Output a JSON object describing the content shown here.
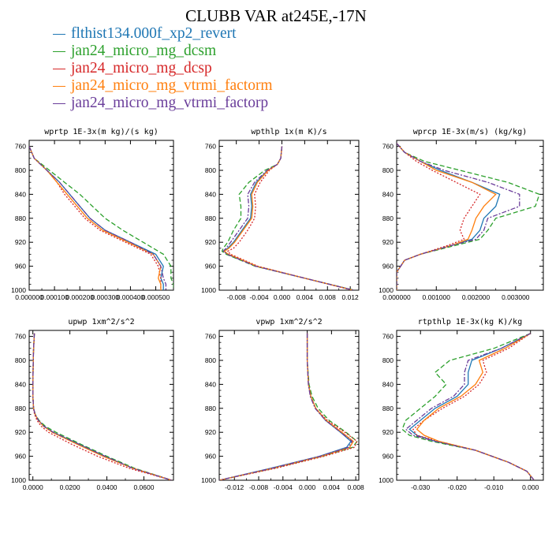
{
  "title": "CLUBB VAR at245E,-17N",
  "legend": [
    {
      "label": "flthist134.000f_xp2_revert",
      "color": "#1f77b4",
      "dash": "none"
    },
    {
      "label": "jan24_micro_mg_dcsm",
      "color": "#2ca02c",
      "dash": "6,3"
    },
    {
      "label": "jan24_micro_mg_dcsp",
      "color": "#d62728",
      "dash": "2,2"
    },
    {
      "label": "jan24_micro_mg_vtrmi_factorm",
      "color": "#ff7f0e",
      "dash": "none"
    },
    {
      "label": "jan24_micro_mg_vtrmi_factorp",
      "color": "#6a3d9a",
      "dash": "6,2,2,2"
    }
  ],
  "chart_data": [
    {
      "type": "line",
      "title": "wprtp  1E-3x(m kg)/(s kg)",
      "ylim": [
        1000,
        750
      ],
      "yticks": [
        760,
        800,
        840,
        880,
        920,
        960,
        1000
      ],
      "xlim": [
        0,
        0.00057
      ],
      "xticks": [
        0,
        0.0001,
        0.0002,
        0.0003,
        0.0004,
        0.0005
      ],
      "xtick_labels": [
        "0.000000",
        "0.000100",
        "0.000200",
        "0.000300",
        "0.000400",
        "0.000500"
      ],
      "y": [
        760,
        780,
        800,
        820,
        840,
        860,
        880,
        900,
        920,
        940,
        960,
        980,
        990,
        1000
      ],
      "series": [
        {
          "values": [
            0.0,
            2e-05,
            7e-05,
            0.00012,
            0.00016,
            0.0002,
            0.00024,
            0.0003,
            0.0004,
            0.0005,
            0.00053,
            0.00052,
            0.00053,
            0.00053
          ]
        },
        {
          "values": [
            0.0,
            2e-05,
            8e-05,
            0.00014,
            0.0002,
            0.00025,
            0.0003,
            0.00037,
            0.00045,
            0.00053,
            0.00056,
            0.00056,
            0.00057,
            0.00057
          ]
        },
        {
          "values": [
            0.0,
            2e-05,
            7e-05,
            0.00011,
            0.00014,
            0.00018,
            0.00022,
            0.00028,
            0.00038,
            0.00048,
            0.00051,
            0.00052,
            0.00052,
            0.00052
          ]
        },
        {
          "values": [
            0.0,
            2e-05,
            7e-05,
            0.00011,
            0.00015,
            0.00019,
            0.00023,
            0.00029,
            0.00039,
            0.00049,
            0.00052,
            0.00051,
            0.00052,
            0.00052
          ]
        },
        {
          "values": [
            0.0,
            2e-05,
            7e-05,
            0.00012,
            0.00016,
            0.0002,
            0.00024,
            0.0003,
            0.0004,
            0.00049,
            0.00052,
            0.00053,
            0.00054,
            0.00054
          ]
        }
      ]
    },
    {
      "type": "line",
      "title": "wpthlp  1x(m K)/s",
      "ylim": [
        1000,
        750
      ],
      "yticks": [
        760,
        800,
        840,
        880,
        920,
        960,
        1000
      ],
      "xlim": [
        -0.011,
        0.0135
      ],
      "xticks": [
        -0.008,
        -0.004,
        0.0,
        0.004,
        0.008,
        0.012
      ],
      "xtick_labels": [
        "-0.008",
        "-0.004",
        "0.000",
        "0.004",
        "0.008",
        "0.012"
      ],
      "y": [
        760,
        780,
        790,
        800,
        820,
        840,
        860,
        880,
        900,
        920,
        930,
        935,
        940,
        960,
        980,
        1000
      ],
      "series": [
        {
          "values": [
            0.0,
            -0.0002,
            -0.0008,
            -0.0025,
            -0.0045,
            -0.0055,
            -0.0053,
            -0.0055,
            -0.007,
            -0.0085,
            -0.0095,
            -0.0102,
            -0.0095,
            -0.0045,
            0.004,
            0.0125
          ]
        },
        {
          "values": [
            0.0,
            -0.0002,
            -0.0008,
            -0.003,
            -0.0058,
            -0.0075,
            -0.0072,
            -0.0072,
            -0.0085,
            -0.0095,
            -0.0103,
            -0.0105,
            -0.0098,
            -0.0047,
            0.004,
            0.0127
          ]
        },
        {
          "values": [
            0.0,
            -0.0002,
            -0.0008,
            -0.0022,
            -0.0038,
            -0.0048,
            -0.0046,
            -0.0048,
            -0.006,
            -0.0075,
            -0.0085,
            -0.0095,
            -0.009,
            -0.0042,
            0.004,
            0.0124
          ]
        },
        {
          "values": [
            0.0,
            -0.0002,
            -0.0008,
            -0.0024,
            -0.0043,
            -0.0053,
            -0.0051,
            -0.0053,
            -0.0068,
            -0.0083,
            -0.0093,
            -0.0101,
            -0.0094,
            -0.0044,
            0.004,
            0.0125
          ]
        },
        {
          "values": [
            0.0,
            -0.0002,
            -0.0008,
            -0.0026,
            -0.0048,
            -0.006,
            -0.0058,
            -0.006,
            -0.0075,
            -0.009,
            -0.0098,
            -0.0103,
            -0.0096,
            -0.0046,
            0.004,
            0.0126
          ]
        }
      ]
    },
    {
      "type": "line",
      "title": "wprcp  1E-3x(m/s) (kg/kg)",
      "ylim": [
        1000,
        750
      ],
      "yticks": [
        760,
        800,
        840,
        880,
        920,
        960,
        1000
      ],
      "xlim": [
        0,
        0.0037
      ],
      "xticks": [
        0,
        0.001,
        0.002,
        0.003
      ],
      "xtick_labels": [
        "0.000000",
        "0.001000",
        "0.002000",
        "0.003000"
      ],
      "y": [
        755,
        770,
        785,
        800,
        820,
        840,
        860,
        880,
        900,
        915,
        925,
        940,
        950,
        970,
        1000
      ],
      "series": [
        {
          "values": [
            0.0,
            0.0002,
            0.0006,
            0.0011,
            0.0019,
            0.0026,
            0.0025,
            0.0022,
            0.0021,
            0.0019,
            0.0014,
            0.0006,
            0.0002,
            0.0,
            0.0
          ]
        },
        {
          "values": [
            0.0,
            0.0002,
            0.0007,
            0.0016,
            0.0028,
            0.0036,
            0.0035,
            0.0025,
            0.0023,
            0.0021,
            0.0015,
            0.0006,
            0.0002,
            0.0,
            0.0
          ]
        },
        {
          "values": [
            0.0,
            0.0002,
            0.0005,
            0.0009,
            0.0015,
            0.0021,
            0.0019,
            0.0017,
            0.0016,
            0.0017,
            0.0013,
            0.0006,
            0.0002,
            0.0,
            0.0
          ]
        },
        {
          "values": [
            0.0,
            0.0002,
            0.0006,
            0.001,
            0.0019,
            0.0025,
            0.0022,
            0.002,
            0.0019,
            0.0018,
            0.0014,
            0.0006,
            0.0002,
            0.0,
            0.0
          ]
        },
        {
          "values": [
            0.0,
            0.0002,
            0.0006,
            0.0012,
            0.0023,
            0.0031,
            0.0031,
            0.0023,
            0.0022,
            0.002,
            0.0014,
            0.0006,
            0.0002,
            0.0,
            0.0
          ]
        }
      ]
    },
    {
      "type": "line",
      "title": "upwp  1xm^2/s^2",
      "ylim": [
        1000,
        750
      ],
      "yticks": [
        760,
        800,
        840,
        880,
        920,
        960,
        1000
      ],
      "xlim": [
        -0.002,
        0.076
      ],
      "xticks": [
        0,
        0.02,
        0.04,
        0.06
      ],
      "xtick_labels": [
        "0.0000",
        "0.0200",
        "0.0400",
        "0.0600"
      ],
      "y": [
        755,
        780,
        800,
        820,
        840,
        860,
        880,
        890,
        900,
        910,
        920,
        940,
        960,
        980,
        1000
      ],
      "series": [
        {
          "values": [
            0.0008,
            0.0004,
            0.0002,
            0.0001,
            0.0,
            0.0,
            0.0004,
            0.0012,
            0.003,
            0.006,
            0.011,
            0.025,
            0.039,
            0.054,
            0.075
          ]
        },
        {
          "values": [
            0.0008,
            0.0004,
            0.0002,
            0.0001,
            0.0,
            0.0,
            0.0004,
            0.0013,
            0.0033,
            0.0068,
            0.0125,
            0.026,
            0.04,
            0.055,
            0.075
          ]
        },
        {
          "values": [
            0.0008,
            0.0004,
            0.0002,
            0.0001,
            0.0,
            0.0,
            0.0003,
            0.0009,
            0.0022,
            0.0045,
            0.0085,
            0.021,
            0.035,
            0.052,
            0.075
          ]
        },
        {
          "values": [
            0.0008,
            0.0004,
            0.0002,
            0.0001,
            0.0,
            0.0,
            0.0004,
            0.0012,
            0.0029,
            0.0058,
            0.0105,
            0.024,
            0.038,
            0.054,
            0.075
          ]
        },
        {
          "values": [
            0.0008,
            0.0004,
            0.0002,
            0.0001,
            0.0,
            0.0,
            0.0004,
            0.0012,
            0.003,
            0.006,
            0.011,
            0.025,
            0.039,
            0.054,
            0.075
          ]
        }
      ]
    },
    {
      "type": "line",
      "title": "vpwp  1xm^2/s^2",
      "ylim": [
        1000,
        750
      ],
      "yticks": [
        760,
        800,
        840,
        880,
        920,
        960,
        1000
      ],
      "xlim": [
        -0.0145,
        0.0085
      ],
      "xticks": [
        -0.012,
        -0.008,
        -0.004,
        0.0,
        0.004,
        0.008
      ],
      "xtick_labels": [
        "-0.012",
        "-0.008",
        "-0.004",
        "0.000",
        "0.004",
        "0.008"
      ],
      "y": [
        755,
        800,
        840,
        860,
        880,
        900,
        920,
        935,
        945,
        960,
        980,
        1000
      ],
      "series": [
        {
          "values": [
            0.0,
            0.0,
            0.0002,
            0.0006,
            0.0014,
            0.003,
            0.0055,
            0.0072,
            0.0065,
            0.002,
            -0.006,
            -0.0145
          ]
        },
        {
          "values": [
            0.0,
            0.0,
            0.0003,
            0.0008,
            0.0018,
            0.0036,
            0.0064,
            0.0082,
            0.0075,
            0.0025,
            -0.0055,
            -0.0145
          ]
        },
        {
          "values": [
            0.0,
            0.0,
            0.0002,
            0.0006,
            0.0014,
            0.0033,
            0.0062,
            0.0082,
            0.0078,
            0.0028,
            -0.0052,
            -0.0145
          ]
        },
        {
          "values": [
            0.0,
            0.0,
            0.0002,
            0.0006,
            0.0014,
            0.0031,
            0.0057,
            0.0076,
            0.007,
            0.0023,
            -0.0057,
            -0.0145
          ]
        },
        {
          "values": [
            0.0,
            0.0,
            0.0002,
            0.0005,
            0.0013,
            0.003,
            0.0055,
            0.0074,
            0.0068,
            0.0021,
            -0.0058,
            -0.0145
          ]
        }
      ]
    },
    {
      "type": "line",
      "title": "rtpthlp  1E-3x(kg K)/kg",
      "ylim": [
        1000,
        750
      ],
      "yticks": [
        760,
        800,
        840,
        880,
        920,
        960,
        1000
      ],
      "xlim": [
        -0.0365,
        0.0035
      ],
      "xticks": [
        -0.03,
        -0.02,
        -0.01,
        0.0
      ],
      "xtick_labels": [
        "-0.030",
        "-0.020",
        "-0.010",
        "0.000"
      ],
      "y": [
        755,
        780,
        800,
        820,
        840,
        860,
        880,
        900,
        915,
        925,
        935,
        950,
        970,
        985,
        1000
      ],
      "series": [
        {
          "values": [
            0.0,
            -0.008,
            -0.016,
            -0.017,
            -0.017,
            -0.02,
            -0.026,
            -0.03,
            -0.033,
            -0.031,
            -0.026,
            -0.015,
            -0.006,
            -0.001,
            0.001
          ]
        },
        {
          "values": [
            0.0,
            -0.01,
            -0.022,
            -0.026,
            -0.023,
            -0.026,
            -0.03,
            -0.034,
            -0.035,
            -0.033,
            -0.027,
            -0.015,
            -0.006,
            -0.001,
            0.001
          ]
        },
        {
          "values": [
            0.0,
            -0.006,
            -0.013,
            -0.012,
            -0.014,
            -0.018,
            -0.024,
            -0.029,
            -0.032,
            -0.031,
            -0.025,
            -0.015,
            -0.006,
            -0.001,
            0.001
          ]
        },
        {
          "values": [
            0.0,
            -0.007,
            -0.014,
            -0.013,
            -0.015,
            -0.019,
            -0.025,
            -0.029,
            -0.031,
            -0.029,
            -0.025,
            -0.015,
            -0.006,
            -0.001,
            0.001
          ]
        },
        {
          "values": [
            0.0,
            -0.008,
            -0.017,
            -0.018,
            -0.018,
            -0.021,
            -0.027,
            -0.031,
            -0.034,
            -0.032,
            -0.026,
            -0.015,
            -0.006,
            -0.001,
            0.001
          ]
        }
      ]
    }
  ]
}
